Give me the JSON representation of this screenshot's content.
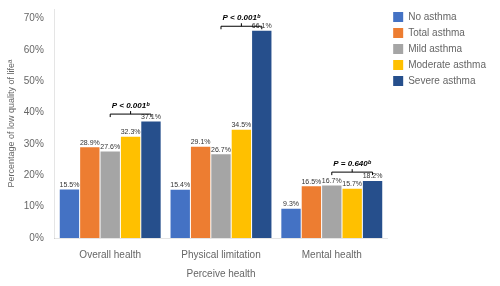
{
  "chart_data": {
    "type": "bar",
    "xlabel": "Perceive health",
    "ylabel": "Percentage of low quality of lifeᵃ",
    "categories": [
      "Overall health",
      "Physical limitation",
      "Mental health"
    ],
    "series": [
      {
        "name": "No asthma",
        "color": "#4472C4",
        "values": [
          15.5,
          15.4,
          9.3
        ],
        "value_labels": [
          "15.5%",
          "15.4%",
          "9.3%"
        ]
      },
      {
        "name": "Total asthma",
        "color": "#ED7D31",
        "values": [
          28.9,
          29.1,
          16.5
        ],
        "value_labels": [
          "28.9%",
          "29.1%",
          "16.5%"
        ]
      },
      {
        "name": "Mild asthma",
        "color": "#A5A5A5",
        "values": [
          27.6,
          26.7,
          16.7
        ],
        "value_labels": [
          "27.6%",
          "26.7%",
          "16.7%"
        ]
      },
      {
        "name": "Moderate asthma",
        "color": "#FFC000",
        "values": [
          32.3,
          34.5,
          15.7
        ],
        "value_labels": [
          "32.3%",
          "34.5%",
          "15.7%"
        ]
      },
      {
        "name": "Severe asthma",
        "color": "#264F8C",
        "values": [
          37.1,
          66.1,
          18.2
        ],
        "value_labels": [
          "37.1%",
          "66.1%",
          "18.2%"
        ]
      }
    ],
    "ylim": [
      0,
      73
    ],
    "yticks": [
      {
        "value": 0,
        "label": "0%"
      },
      {
        "value": 10,
        "label": "10%"
      },
      {
        "value": 20,
        "label": "20%"
      },
      {
        "value": 30,
        "label": "30%"
      },
      {
        "value": 40,
        "label": "40%"
      },
      {
        "value": 50,
        "label": "50%"
      },
      {
        "value": 60,
        "label": "60%"
      },
      {
        "value": 70,
        "label": "70%"
      }
    ],
    "annotations": [
      {
        "text": "P < 0.001ᵇ",
        "category": "Overall health",
        "series": [
          "Mild asthma",
          "Severe asthma"
        ],
        "y": 39.5
      },
      {
        "text": "P < 0.001ᵇ",
        "category": "Physical limitation",
        "series": [
          "Mild asthma",
          "Severe asthma"
        ],
        "y": 67.5
      },
      {
        "text": "P = 0.640ᵇ",
        "category": "Mental health",
        "series": [
          "Mild asthma",
          "Severe asthma"
        ],
        "y": 21.0
      }
    ],
    "data_labels": true,
    "grid": false,
    "legend": "right"
  }
}
